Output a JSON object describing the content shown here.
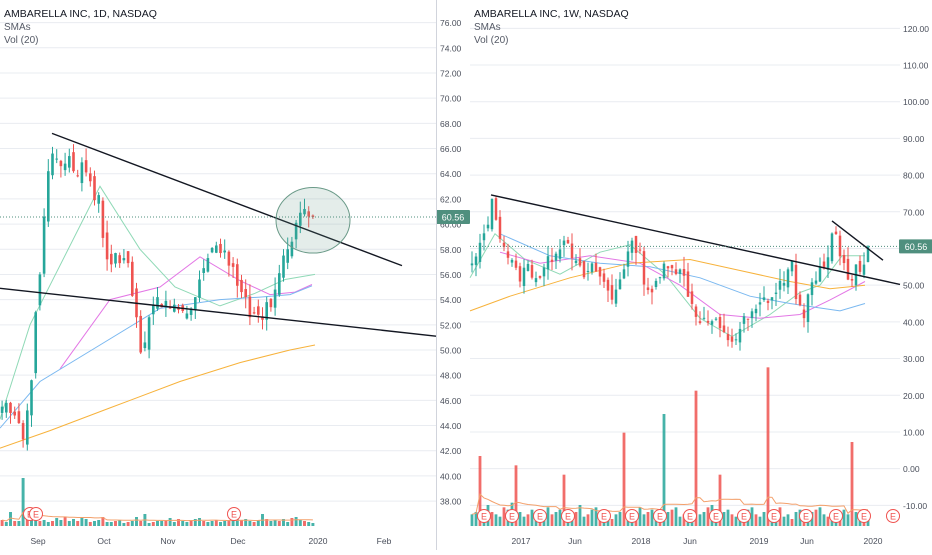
{
  "colors": {
    "up": "#26a69a",
    "down": "#ef5350",
    "grid": "#e9ecf1",
    "axis_text": "#4a4f5b",
    "sma_green": "#8fd9b6",
    "sma_pink": "#e377e5",
    "sma_blue": "#7ab8f0",
    "sma_orange": "#f7b23b",
    "vol_ma": "#f3a06b",
    "trend": "#131722",
    "price_tag": "#4f8f7e",
    "event_circle": "#ef5350",
    "highlight": "#6a9a88"
  },
  "icons": {
    "earnings_marker": "earnings-event-icon"
  },
  "panels": [
    {
      "id": "daily",
      "title": "AMBARELLA INC, 1D, NASDAQ",
      "indicator_1": "SMAs",
      "indicator_2": "Vol (20)",
      "price_label": "60.56",
      "event_letter": "E"
    },
    {
      "id": "weekly",
      "title": "AMBARELLA INC, 1W, NASDAQ",
      "indicator_1": "SMAs",
      "indicator_2": "Vol (20)",
      "price_label": "60.56",
      "event_letter": "E"
    }
  ],
  "chart_data": [
    {
      "type": "candlestick",
      "title": "AMBARELLA INC, 1D, NASDAQ",
      "ylim": [
        36.5,
        77
      ],
      "y_ticks": [
        "76.00",
        "74.00",
        "72.00",
        "70.00",
        "68.00",
        "66.00",
        "64.00",
        "62.00",
        "60.00",
        "58.00",
        "56.00",
        "54.00",
        "52.00",
        "50.00",
        "48.00",
        "46.00",
        "44.00",
        "42.00",
        "40.00",
        "38.00"
      ],
      "x_ticks": [
        "Sep",
        "Oct",
        "Nov",
        "Dec",
        "2020",
        "Feb"
      ],
      "last_price": 60.56,
      "close_path": [
        45.5,
        45.8,
        45,
        44.8,
        44.2,
        42.9,
        45.2,
        47.6,
        53,
        56,
        60.6,
        64.2,
        65.6,
        65.2,
        64.6,
        64.8,
        65.4,
        64.2,
        63.8,
        64.9,
        64.1,
        63.4,
        61.9,
        62.3,
        58.9,
        57.2,
        56.8,
        57.7,
        56.9,
        57.3,
        56.9,
        54.3,
        52.6,
        49.8,
        50.6,
        52.6,
        53.6,
        54.2,
        53.4,
        53.9,
        53.3,
        53.6,
        53.2,
        53.1,
        52.9,
        53.3,
        54.2,
        55.6,
        56.5,
        57.3,
        58.1,
        58.3,
        57.7,
        57.9,
        56.7,
        56.6,
        55.1,
        54.6,
        54.2,
        52.6,
        52.9,
        52.8,
        52.4,
        53.8,
        53.4,
        54.8,
        56.1,
        57.5,
        58,
        58.6,
        60.1,
        60.9,
        61.2,
        60.6,
        60.56
      ],
      "sma_series": [
        {
          "color": "sma_green",
          "values": [
            [
              0,
              44.5
            ],
            [
              30,
              52
            ],
            [
              100,
              63
            ],
            [
              140,
              58
            ],
            [
              175,
              55
            ],
            [
              220,
              53.5
            ],
            [
              255,
              54.5
            ],
            [
              285,
              55.6
            ],
            [
              315,
              56
            ]
          ]
        },
        {
          "color": "sma_pink",
          "values": [
            [
              60,
              48.5
            ],
            [
              110,
              54
            ],
            [
              160,
              55
            ],
            [
              200,
              57.4
            ],
            [
              240,
              55.5
            ],
            [
              270,
              54.4
            ],
            [
              295,
              54.6
            ],
            [
              312,
              55.2
            ]
          ]
        },
        {
          "color": "sma_blue",
          "values": [
            [
              0,
              43.8
            ],
            [
              40,
              47.5
            ],
            [
              100,
              50.4
            ],
            [
              160,
              53.3
            ],
            [
              220,
              54
            ],
            [
              260,
              54.2
            ],
            [
              290,
              54.4
            ],
            [
              312,
              55.1
            ]
          ]
        },
        {
          "color": "sma_orange",
          "values": [
            [
              0,
              42.2
            ],
            [
              50,
              43.6
            ],
            [
              110,
              45.4
            ],
            [
              180,
              47.5
            ],
            [
              240,
              49
            ],
            [
              290,
              50
            ],
            [
              315,
              50.4
            ]
          ]
        }
      ],
      "trendlines": [
        {
          "from": [
            52,
            67.2
          ],
          "to": [
            402,
            56.7
          ]
        },
        {
          "from": [
            0,
            54.9
          ],
          "to": [
            436,
            51.1
          ]
        }
      ],
      "highlight_ellipse": {
        "center": [
          313,
          60.3
        ],
        "rx": 37,
        "ry": 2.6
      },
      "volume": [
        6,
        4,
        14,
        5,
        5,
        16,
        7,
        6,
        7,
        5,
        6,
        4,
        5,
        8,
        6,
        9,
        5,
        7,
        5,
        8,
        7,
        4,
        5,
        6,
        9,
        4,
        4,
        5,
        6,
        3,
        4,
        5,
        9,
        5,
        6,
        3,
        4,
        5,
        5,
        6,
        3,
        4,
        7,
        5,
        4,
        6,
        7,
        8,
        5,
        4,
        5,
        6,
        4,
        5,
        6,
        5,
        8,
        6,
        7,
        5,
        4,
        6,
        5,
        7,
        5,
        6,
        5,
        7,
        4,
        8,
        9,
        6,
        5,
        4,
        3
      ],
      "volume_spikes": {
        "5": 48,
        "34": 12,
        "40": 8,
        "62": 12
      },
      "earnings_events": 3
    },
    {
      "type": "candlestick",
      "title": "AMBARELLA INC, 1W, NASDAQ",
      "ylim": [
        -14,
        125
      ],
      "y_ticks": [
        "120.00",
        "110.00",
        "100.00",
        "90.00",
        "80.00",
        "70.00",
        "60.00",
        "50.00",
        "40.00",
        "30.00",
        "20.00",
        "10.00",
        "0.00",
        "-10.00"
      ],
      "x_ticks": [
        "2017",
        "Jun",
        "2018",
        "Jun",
        "2019",
        "Jun",
        "2020"
      ],
      "last_price": 60.56,
      "close_path": [
        [
          0,
          55
        ],
        [
          8,
          60
        ],
        [
          14,
          66
        ],
        [
          20,
          72
        ],
        [
          25,
          68
        ],
        [
          30,
          62
        ],
        [
          38,
          57
        ],
        [
          46,
          52
        ],
        [
          56,
          55
        ],
        [
          66,
          52
        ],
        [
          76,
          56
        ],
        [
          86,
          61
        ],
        [
          96,
          63
        ],
        [
          104,
          55
        ],
        [
          114,
          52
        ],
        [
          122,
          55
        ],
        [
          131,
          51
        ],
        [
          140,
          46
        ],
        [
          150,
          54
        ],
        [
          158,
          60
        ],
        [
          166,
          61
        ],
        [
          172,
          52
        ],
        [
          178,
          48
        ],
        [
          186,
          50
        ],
        [
          194,
          57
        ],
        [
          203,
          55
        ],
        [
          212,
          52
        ],
        [
          222,
          43
        ],
        [
          232,
          40
        ],
        [
          242,
          40
        ],
        [
          252,
          36
        ],
        [
          262,
          35
        ],
        [
          272,
          40
        ],
        [
          282,
          42
        ],
        [
          292,
          46
        ],
        [
          302,
          47
        ],
        [
          312,
          52
        ],
        [
          320,
          55
        ],
        [
          326,
          44
        ],
        [
          332,
          43
        ],
        [
          340,
          49
        ],
        [
          348,
          54
        ],
        [
          354,
          53
        ],
        [
          360,
          65
        ],
        [
          366,
          62
        ],
        [
          372,
          55
        ],
        [
          378,
          52
        ],
        [
          384,
          55
        ],
        [
          388,
          54
        ],
        [
          393,
          58
        ],
        [
          399,
          60.56
        ]
      ],
      "sma_series": [
        {
          "color": "sma_green",
          "values": [
            [
              0,
              52
            ],
            [
              25,
              64
            ],
            [
              55,
              57
            ],
            [
              90,
              53
            ],
            [
              130,
              59
            ],
            [
              160,
              61
            ],
            [
              195,
              53
            ],
            [
              230,
              41
            ],
            [
              262,
              36
            ],
            [
              300,
              42
            ],
            [
              330,
              48
            ],
            [
              350,
              50
            ],
            [
              372,
              58
            ],
            [
              395,
              58
            ]
          ]
        },
        {
          "color": "sma_pink",
          "values": [
            [
              30,
              59
            ],
            [
              70,
              56
            ],
            [
              120,
              58
            ],
            [
              170,
              56
            ],
            [
              210,
              50
            ],
            [
              250,
              42
            ],
            [
              290,
              41
            ],
            [
              330,
              42
            ],
            [
              360,
              46
            ],
            [
              395,
              51
            ]
          ]
        },
        {
          "color": "sma_blue",
          "values": [
            [
              30,
              64
            ],
            [
              80,
              58
            ],
            [
              130,
              56
            ],
            [
              180,
              55
            ],
            [
              230,
              52
            ],
            [
              280,
              47
            ],
            [
              320,
              45
            ],
            [
              345,
              44
            ],
            [
              370,
              43
            ],
            [
              395,
              45
            ]
          ]
        },
        {
          "color": "sma_orange",
          "values": [
            [
              0,
              43
            ],
            [
              40,
              47
            ],
            [
              100,
              52
            ],
            [
              160,
              56
            ],
            [
              220,
              57
            ],
            [
              270,
              54
            ],
            [
              320,
              51
            ],
            [
              360,
              49
            ],
            [
              395,
              50
            ]
          ]
        }
      ],
      "trendlines": [
        {
          "from": [
            21,
            74.6
          ],
          "to": [
            430,
            50.2
          ]
        },
        {
          "from": [
            362,
            67.5
          ],
          "to": [
            413,
            56.8
          ]
        }
      ],
      "volume": [
        5,
        6,
        8,
        7,
        9,
        6,
        5,
        4,
        8,
        7,
        10,
        5,
        6,
        4,
        5,
        7,
        6,
        3,
        4,
        8,
        5,
        6,
        7,
        4,
        5,
        3,
        6,
        9,
        4,
        5,
        7,
        8,
        5,
        6,
        4,
        3,
        5,
        6,
        7,
        4,
        5,
        6,
        8,
        5,
        6,
        7,
        3,
        4,
        5,
        6,
        7,
        8,
        4,
        5,
        6,
        7,
        3,
        5,
        6,
        8,
        9,
        4,
        5,
        6,
        7,
        5,
        4,
        3,
        6,
        7,
        8,
        5,
        4,
        6,
        7,
        5,
        6,
        8,
        4,
        5,
        3,
        6,
        7,
        5,
        4,
        6,
        7,
        8,
        5,
        4,
        3,
        5,
        6,
        7,
        5,
        4,
        6,
        5,
        7,
        4
      ],
      "volume_spikes": {
        "2": 30,
        "11": 26,
        "23": 22,
        "38": 40,
        "48": 48,
        "56": 58,
        "62": 22,
        "74": 68,
        "95": 36,
        "123": 40,
        "142": 52,
        "162": 34
      },
      "earnings_events": 14
    }
  ]
}
